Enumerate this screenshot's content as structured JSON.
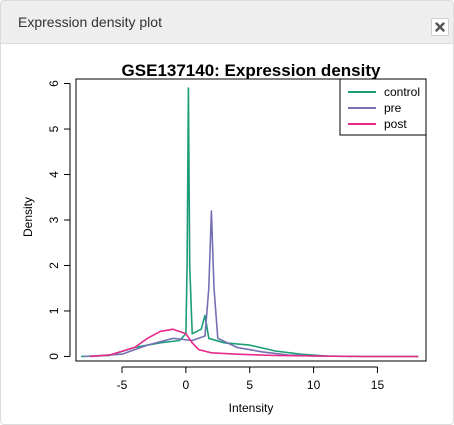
{
  "panel": {
    "title": "Expression density plot",
    "close_icon": "close-icon"
  },
  "chart_data": {
    "type": "line",
    "title": "GSE137140: Expression density",
    "xlabel": "Intensity",
    "ylabel": "Density",
    "xlim": [
      -8.6,
      18.8
    ],
    "ylim": [
      -0.1,
      6.1
    ],
    "x_ticks": [
      -5,
      0,
      5,
      10,
      15
    ],
    "y_ticks": [
      0,
      1,
      2,
      3,
      4,
      5,
      6
    ],
    "grid": false,
    "legend": "top-right",
    "series": [
      {
        "name": "control",
        "color": "#1b9e77",
        "points": [
          [
            -8.2,
            0
          ],
          [
            -6,
            0.02
          ],
          [
            -4,
            0.2
          ],
          [
            -2,
            0.3
          ],
          [
            -0.5,
            0.35
          ],
          [
            0.0,
            0.5
          ],
          [
            0.1,
            2.0
          ],
          [
            0.2,
            5.9
          ],
          [
            0.3,
            2.0
          ],
          [
            0.5,
            0.5
          ],
          [
            1.2,
            0.6
          ],
          [
            1.5,
            0.9
          ],
          [
            1.8,
            0.4
          ],
          [
            3,
            0.3
          ],
          [
            5,
            0.25
          ],
          [
            7,
            0.12
          ],
          [
            9,
            0.05
          ],
          [
            11,
            0.01
          ],
          [
            14,
            0
          ],
          [
            18.2,
            0
          ]
        ]
      },
      {
        "name": "pre",
        "color": "#7570b3",
        "points": [
          [
            -8,
            0
          ],
          [
            -5,
            0.05
          ],
          [
            -3,
            0.25
          ],
          [
            -1,
            0.4
          ],
          [
            0.5,
            0.35
          ],
          [
            1.5,
            0.45
          ],
          [
            1.8,
            1.5
          ],
          [
            2.0,
            3.2
          ],
          [
            2.2,
            1.5
          ],
          [
            2.5,
            0.4
          ],
          [
            4,
            0.2
          ],
          [
            6,
            0.1
          ],
          [
            8,
            0.03
          ],
          [
            10,
            0.01
          ],
          [
            13,
            0
          ]
        ]
      },
      {
        "name": "post",
        "color": "#e7298a",
        "points": [
          [
            -7.5,
            0
          ],
          [
            -6,
            0.03
          ],
          [
            -4,
            0.2
          ],
          [
            -3,
            0.4
          ],
          [
            -2,
            0.55
          ],
          [
            -1,
            0.6
          ],
          [
            0,
            0.5
          ],
          [
            0.5,
            0.3
          ],
          [
            1,
            0.15
          ],
          [
            2,
            0.08
          ],
          [
            4,
            0.05
          ],
          [
            7,
            0.02
          ],
          [
            10,
            0.01
          ],
          [
            14,
            0
          ],
          [
            18.2,
            0
          ]
        ]
      }
    ]
  }
}
